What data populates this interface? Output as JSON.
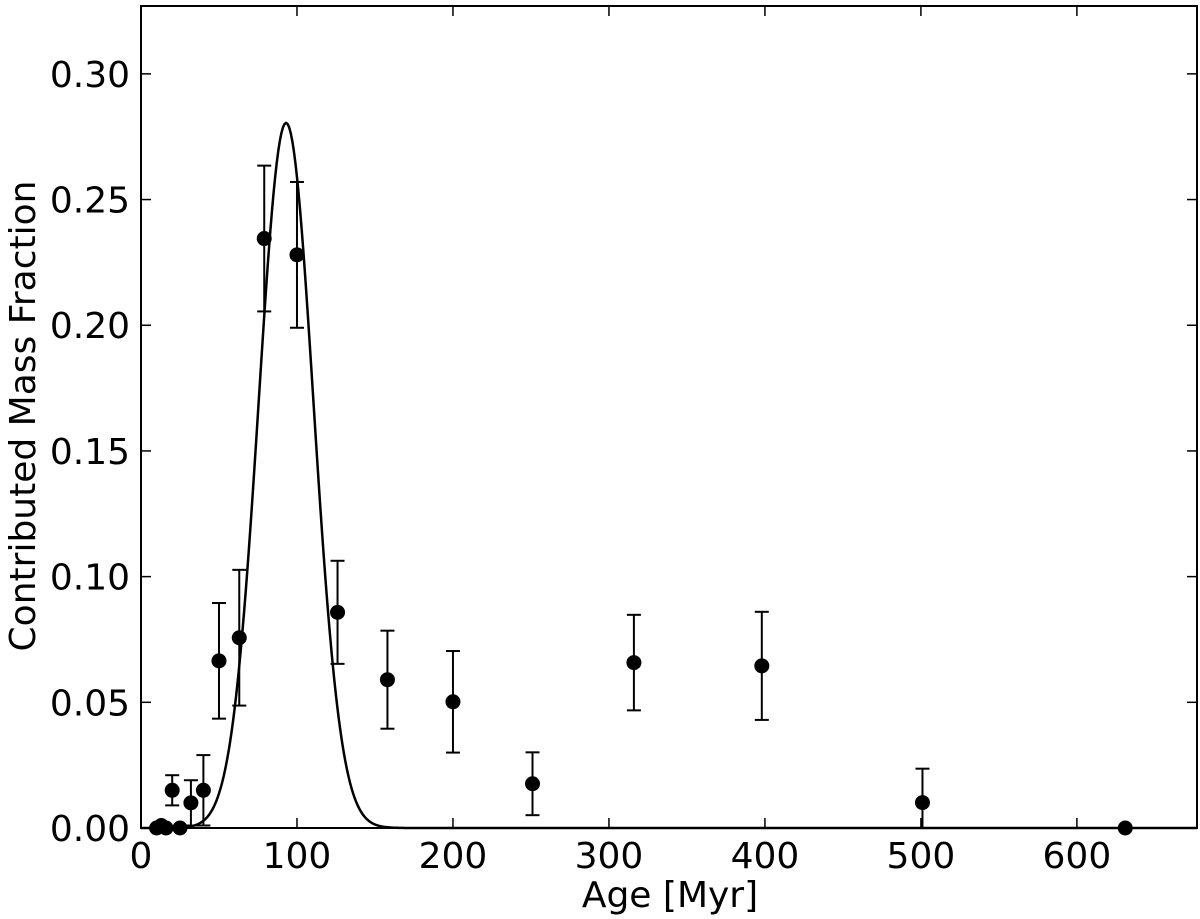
{
  "chart_data": {
    "type": "scatter",
    "xlabel": "Age [Myr]",
    "ylabel": "Contributed Mass Fraction",
    "xlim": [
      0,
      677
    ],
    "ylim": [
      0,
      0.327
    ],
    "xticks": [
      0,
      100,
      200,
      300,
      400,
      500,
      600
    ],
    "yticks": [
      0.0,
      0.05,
      0.1,
      0.15,
      0.2,
      0.25,
      0.3
    ],
    "xtick_labels": [
      "0",
      "100",
      "200",
      "300",
      "400",
      "500",
      "600"
    ],
    "ytick_labels": [
      "0.00",
      "0.05",
      "0.10",
      "0.15",
      "0.20",
      "0.25",
      "0.30"
    ],
    "grid": false,
    "series": [
      {
        "marker": "circle",
        "color": "#000000",
        "points": [
          {
            "x": 10,
            "y": 0.0,
            "err": 0.0
          },
          {
            "x": 13,
            "y": 0.001,
            "err": 0.0
          },
          {
            "x": 16,
            "y": 0.0,
            "err": 0.0
          },
          {
            "x": 20,
            "y": 0.015,
            "err": 0.006
          },
          {
            "x": 25,
            "y": 0.0,
            "err": 0.0
          },
          {
            "x": 32,
            "y": 0.01,
            "err": 0.009
          },
          {
            "x": 40,
            "y": 0.015,
            "err": 0.014
          },
          {
            "x": 50,
            "y": 0.0665,
            "err": 0.023
          },
          {
            "x": 63,
            "y": 0.0757,
            "err": 0.027
          },
          {
            "x": 79,
            "y": 0.2345,
            "err": 0.029
          },
          {
            "x": 100,
            "y": 0.228,
            "err": 0.029
          },
          {
            "x": 126,
            "y": 0.0858,
            "err": 0.0205
          },
          {
            "x": 158,
            "y": 0.059,
            "err": 0.0195
          },
          {
            "x": 200,
            "y": 0.0502,
            "err": 0.0202
          },
          {
            "x": 251,
            "y": 0.0176,
            "err": 0.0125
          },
          {
            "x": 316,
            "y": 0.0658,
            "err": 0.019
          },
          {
            "x": 398,
            "y": 0.0645,
            "err": 0.0215
          },
          {
            "x": 501,
            "y": 0.0101,
            "err": 0.0135
          },
          {
            "x": 631,
            "y": 0.0,
            "err": 0.0
          }
        ]
      },
      {
        "type": "line",
        "color": "#000000",
        "gaussian": {
          "amplitude": 0.2805,
          "mean": 93,
          "sigma": 17.5
        },
        "x_range": [
          0,
          677
        ]
      }
    ]
  }
}
